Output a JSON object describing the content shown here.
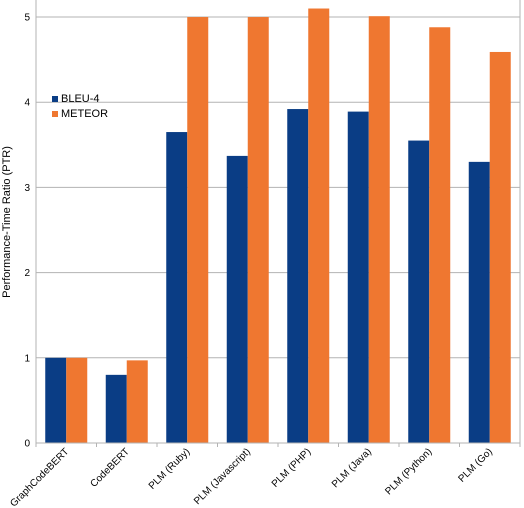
{
  "chart_data": {
    "type": "bar",
    "categories": [
      "GraphCodeBERT",
      "CodeBERT",
      "PLM (Ruby)",
      "PLM (Javascript)",
      "PLM (PHP)",
      "PLM (Java)",
      "PLM (Python)",
      "PLM (Go)"
    ],
    "series": [
      {
        "name": "BLEU-4",
        "color": "#0a3d85",
        "values": [
          1.0,
          0.8,
          3.65,
          3.37,
          3.92,
          3.89,
          3.55,
          3.3
        ]
      },
      {
        "name": "METEOR",
        "color": "#ef7730",
        "values": [
          1.0,
          0.97,
          5.0,
          5.0,
          5.1,
          5.01,
          4.88,
          4.59
        ]
      }
    ],
    "title": "",
    "xlabel": "",
    "ylabel": "Performance-Time Ratio (PTR)",
    "ylim": [
      0,
      5.2
    ],
    "yticks": [
      "0",
      "1",
      "2",
      "3",
      "4",
      "5"
    ],
    "grid": true,
    "legend_position": "top-left"
  }
}
